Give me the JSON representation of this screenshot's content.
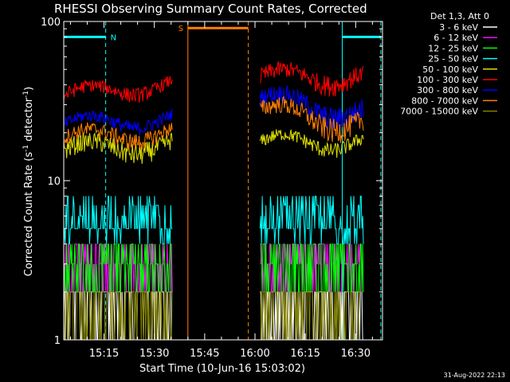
{
  "chart_data": {
    "type": "line",
    "title": "RHESSI Observing Summary Count Rates, Corrected",
    "xlabel": "Start Time (10-Jun-16 15:03:02)",
    "ylabel_main": "Corrected Count Rate (s",
    "ylabel_sup1": "-1",
    "ylabel_mid": " detector",
    "ylabel_sup2": "-1",
    "ylabel_end": ")",
    "yscale": "log",
    "ylim": [
      1,
      100
    ],
    "xlim_minutes": [
      3.0,
      42.0
    ],
    "x_ticks": [
      {
        "m": 15,
        "label": "15:15"
      },
      {
        "m": 30,
        "label": "15:30"
      },
      {
        "m": 45,
        "label": "15:45"
      },
      {
        "m": 60,
        "label": "16:00"
      },
      {
        "m": 75,
        "label": "16:15"
      },
      {
        "m": 90,
        "label": "16:30"
      }
    ],
    "y_ticks": [
      {
        "v": 1,
        "label": "1"
      },
      {
        "v": 10,
        "label": "10"
      },
      {
        "v": 100,
        "label": "100"
      }
    ],
    "legend_title": "Det 1,3, Att 0",
    "series": [
      {
        "name": "3 - 6 keV",
        "color": "#ffffff",
        "segments": [
          {
            "from": 3.0,
            "to": 35.5,
            "base": 1.6,
            "noise": 0.5,
            "drift": 0
          },
          {
            "from": 61.5,
            "to": 92.5,
            "base": 1.6,
            "noise": 0.5,
            "drift": 0
          }
        ]
      },
      {
        "name": "6 - 12 keV",
        "color": "#ff00ff",
        "segments": [
          {
            "from": 3.0,
            "to": 35.5,
            "base": 3.4,
            "noise": 0.7,
            "drift": 0
          },
          {
            "from": 61.5,
            "to": 92.5,
            "base": 3.6,
            "noise": 0.7,
            "drift": 0
          }
        ]
      },
      {
        "name": "12 - 25 keV",
        "color": "#00ff00",
        "segments": [
          {
            "from": 3.0,
            "to": 35.5,
            "base": 2.9,
            "noise": 0.6,
            "drift": 0
          },
          {
            "from": 61.5,
            "to": 92.5,
            "base": 3.2,
            "noise": 0.6,
            "drift": 0
          }
        ]
      },
      {
        "name": "25 - 50 keV",
        "color": "#00ffff",
        "segments": [
          {
            "from": 3.0,
            "to": 35.5,
            "base": 5.0,
            "noise": 0.9,
            "drift": 0
          },
          {
            "from": 61.5,
            "to": 92.5,
            "base": 5.6,
            "noise": 0.9,
            "drift": 0
          }
        ]
      },
      {
        "name": "50 - 100 keV",
        "color": "#dddd00",
        "segments": [
          {
            "from": 3.0,
            "to": 35.5,
            "base": 15.5,
            "noise": 1.6,
            "drift": 0.1
          },
          {
            "from": 61.5,
            "to": 92.5,
            "base": 17.5,
            "noise": 1.2,
            "drift": 0
          }
        ]
      },
      {
        "name": "100 - 300 keV",
        "color": "#ff0000",
        "segments": [
          {
            "from": 3.0,
            "to": 35.5,
            "base": 34.0,
            "noise": 2.5,
            "drift": 0.2
          },
          {
            "from": 61.5,
            "to": 92.5,
            "base": 45.0,
            "noise": 4.0,
            "drift": 0
          }
        ]
      },
      {
        "name": "300 - 800 keV",
        "color": "#0000ff",
        "segments": [
          {
            "from": 3.0,
            "to": 35.5,
            "base": 22.5,
            "noise": 1.5,
            "drift": 0.1
          },
          {
            "from": 61.5,
            "to": 92.5,
            "base": 33.0,
            "noise": 3.0,
            "drift": -0.2
          }
        ]
      },
      {
        "name": "800 - 7000 keV",
        "color": "#ff8000",
        "segments": [
          {
            "from": 3.0,
            "to": 35.5,
            "base": 18.5,
            "noise": 1.5,
            "drift": 0.1
          },
          {
            "from": 61.5,
            "to": 92.5,
            "base": 28.0,
            "noise": 2.5,
            "drift": -0.2
          }
        ]
      },
      {
        "name": "7000 - 15000 keV",
        "color": "#808000",
        "segments": [
          {
            "from": 3.0,
            "to": 35.5,
            "base": 1.5,
            "noise": 0.4,
            "drift": 0
          },
          {
            "from": 61.5,
            "to": 92.5,
            "base": 1.5,
            "noise": 0.4,
            "drift": 0
          }
        ]
      }
    ],
    "annotations": [
      {
        "id": "night-1",
        "label": "N",
        "color": "#00ffff",
        "from": 3.0,
        "to": 15.5,
        "y": 80
      },
      {
        "id": "saa",
        "label": "S",
        "color": "#ff8000",
        "from": 40.0,
        "to": 58.0,
        "y": 91
      },
      {
        "id": "night-2",
        "label": "",
        "color": "#00ffff",
        "from": 86.0,
        "to": 97.5,
        "y": 80
      }
    ],
    "vertical_markers": [
      {
        "m": 15.5,
        "color": "#00ffff",
        "dashed": true
      },
      {
        "m": 40.0,
        "color": "#ff8000",
        "dashed": false
      },
      {
        "m": 58.0,
        "color": "#ff8000",
        "dashed": true
      },
      {
        "m": 86.0,
        "color": "#00ffff",
        "dashed": false
      },
      {
        "m": 97.5,
        "color": "#00ffff",
        "dashed": true
      }
    ]
  },
  "footer": {
    "timestamp": "31-Aug-2022 22:13"
  }
}
